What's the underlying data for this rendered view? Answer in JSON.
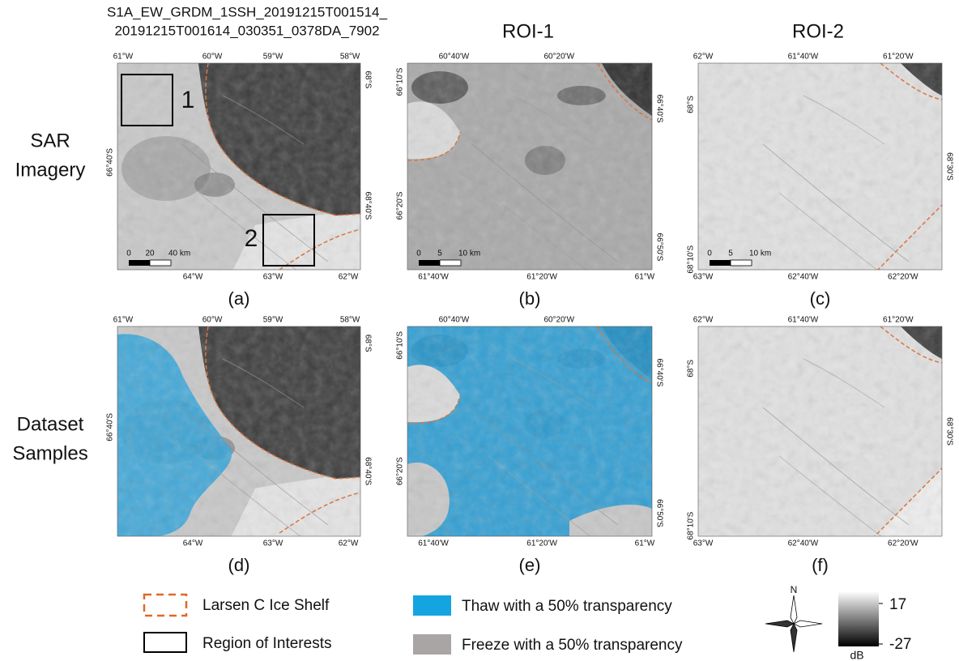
{
  "header": {
    "lines": [
      "S1A_EW_GRDM_1SSH_20191215T001514_",
      "20191215T001614_030351_0378DA_7902"
    ]
  },
  "column_titles": [
    "ROI-1",
    "ROI-2"
  ],
  "row_labels": [
    [
      "SAR",
      "Imagery"
    ],
    [
      "Dataset",
      "Samples"
    ]
  ],
  "panels": [
    {
      "label": "(a)",
      "top_ticks": [
        "61°W",
        "60°W",
        "59°W",
        "58°W"
      ],
      "bottom_ticks": [
        "64°W",
        "63°W",
        "62°W"
      ],
      "left_ticks": [
        "66°40'S"
      ],
      "right_ticks": [
        "68°S",
        "68°40'S"
      ],
      "scale_bar": [
        "0",
        "20",
        "40 km"
      ],
      "boxes": [
        "1",
        "2"
      ]
    },
    {
      "label": "(b)",
      "top_ticks": [
        "60°40'W",
        "60°20'W"
      ],
      "bottom_ticks": [
        "61°40'W",
        "61°20'W",
        "61°W"
      ],
      "left_ticks": [
        "66°10'S",
        "66°20'S"
      ],
      "right_ticks": [
        "66°40'S",
        "66°50'S"
      ],
      "scale_bar": [
        "0",
        "5",
        "10 km"
      ]
    },
    {
      "label": "(c)",
      "top_ticks": [
        "62°W",
        "61°40'W",
        "61°20'W"
      ],
      "bottom_ticks": [
        "63°W",
        "62°40'W",
        "62°20'W"
      ],
      "left_ticks": [
        "68°S",
        "68°10'S"
      ],
      "right_ticks": [
        "68°30'S"
      ],
      "scale_bar": [
        "0",
        "5",
        "10 km"
      ]
    },
    {
      "label": "(d)",
      "top_ticks": [
        "61°W",
        "60°W",
        "59°W",
        "58°W"
      ],
      "bottom_ticks": [
        "64°W",
        "63°W",
        "62°W"
      ],
      "left_ticks": [
        "66°40'S"
      ],
      "right_ticks": [
        "68°S",
        "68°40'S"
      ]
    },
    {
      "label": "(e)",
      "top_ticks": [
        "60°40'W",
        "60°20'W"
      ],
      "bottom_ticks": [
        "61°40'W",
        "61°20'W",
        "61°W"
      ],
      "left_ticks": [
        "66°10'S",
        "66°20'S"
      ],
      "right_ticks": [
        "66°40'S",
        "66°50'S"
      ]
    },
    {
      "label": "(f)",
      "top_ticks": [
        "62°W",
        "61°40'W",
        "61°20'W"
      ],
      "bottom_ticks": [
        "63°W",
        "62°40'W",
        "62°20'W"
      ],
      "left_ticks": [
        "68°S",
        "68°10'S"
      ],
      "right_ticks": [
        "68°30'S"
      ]
    }
  ],
  "legend": {
    "ice_shelf": "Larsen C Ice Shelf",
    "roi": "Region of Interests",
    "thaw": "Thaw with a 50% transparency",
    "freeze": "Freeze with a 50% transparency",
    "compass": "N",
    "colorbar": {
      "max": 17,
      "min": -27,
      "unit": "dB"
    }
  }
}
